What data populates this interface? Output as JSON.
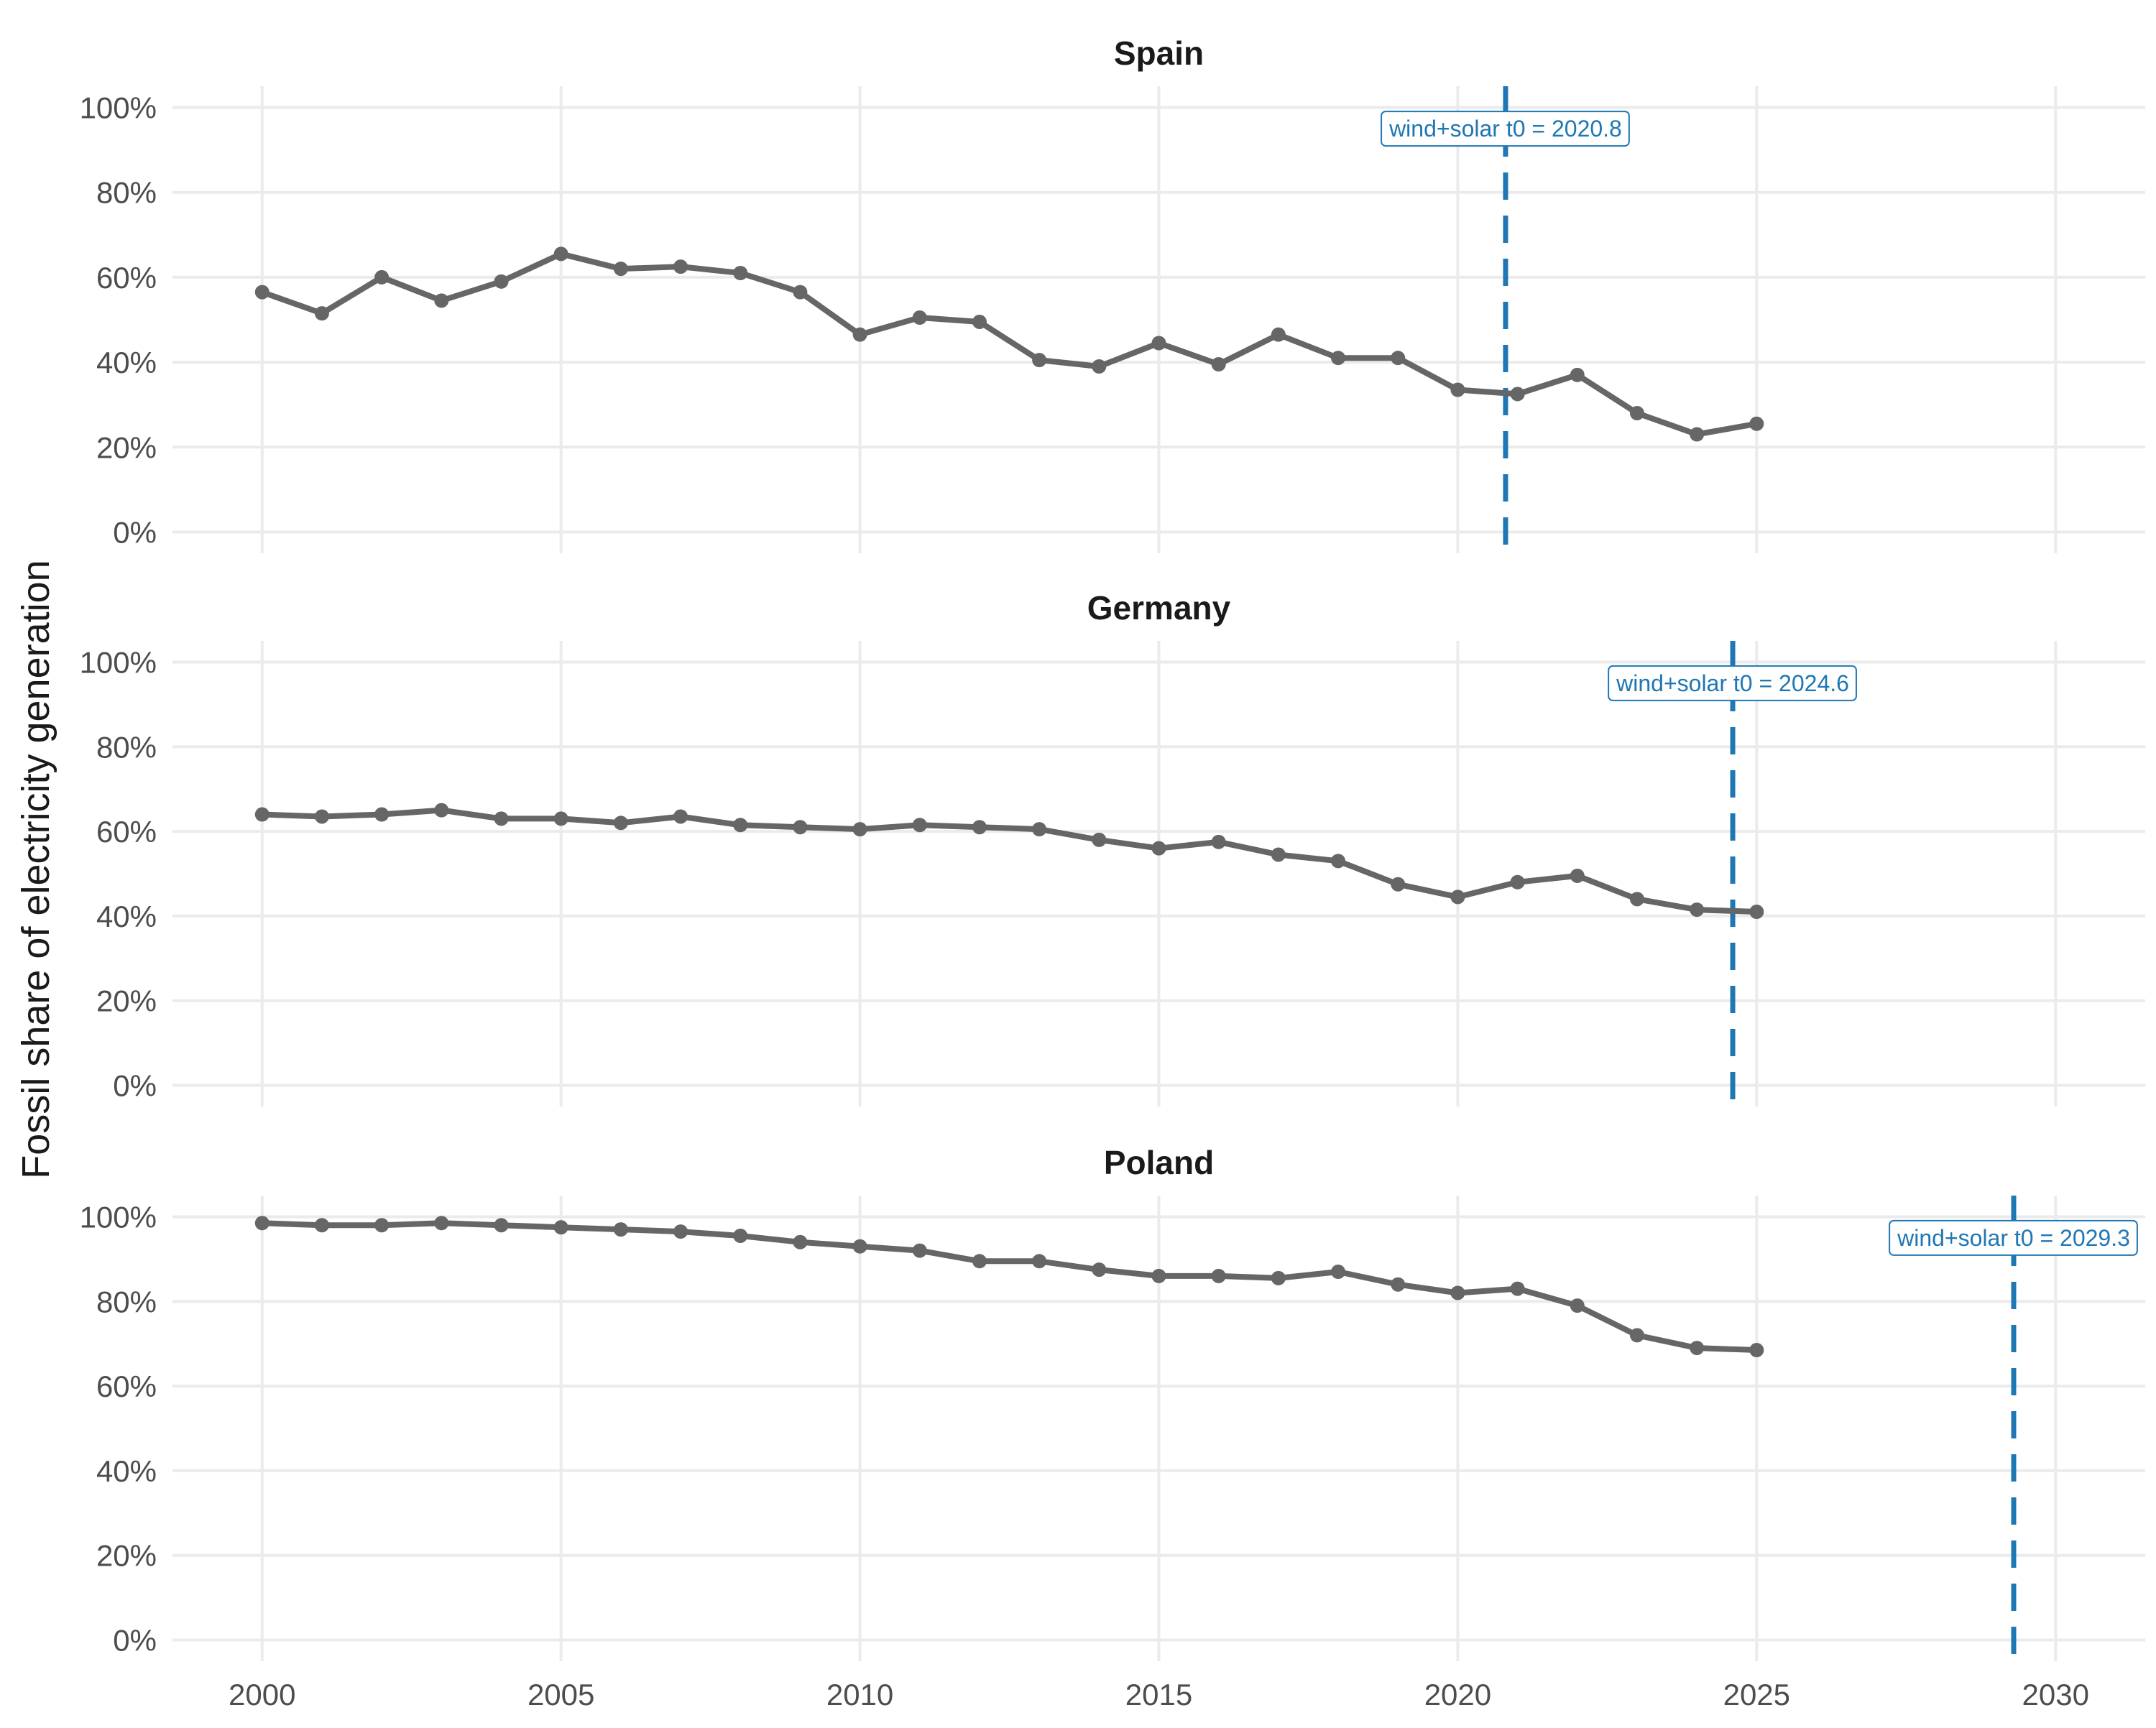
{
  "chart_data": {
    "type": "line",
    "ylabel": "Fossil share of electricity generation",
    "xlim": [
      1998.5,
      2031.5
    ],
    "ylim": [
      -5,
      105
    ],
    "x_ticks": [
      2000,
      2005,
      2010,
      2015,
      2020,
      2025,
      2030
    ],
    "y_ticks": [
      0,
      20,
      40,
      60,
      80,
      100
    ],
    "y_tick_labels": [
      "0%",
      "20%",
      "40%",
      "60%",
      "80%",
      "100%"
    ],
    "grid": true,
    "colors": {
      "series": "#666666",
      "marker": "#666666",
      "vline": "#1f77b4",
      "grid": "#ebebeb"
    },
    "panels": [
      {
        "title": "Spain",
        "x": [
          2000,
          2001,
          2002,
          2003,
          2004,
          2005,
          2006,
          2007,
          2008,
          2009,
          2010,
          2011,
          2012,
          2013,
          2014,
          2015,
          2016,
          2017,
          2018,
          2019,
          2020,
          2021,
          2022,
          2023,
          2024,
          2025
        ],
        "values": [
          56.5,
          51.5,
          60,
          54.5,
          59,
          65.5,
          62,
          62.5,
          61,
          56.5,
          46.5,
          50.5,
          49.5,
          40.5,
          39,
          44.5,
          39.5,
          46.5,
          41,
          41,
          33.5,
          32.5,
          37,
          28,
          23,
          25.5
        ],
        "vline": {
          "x": 2020.8,
          "label": "wind+solar t0 = 2020.8"
        }
      },
      {
        "title": "Germany",
        "x": [
          2000,
          2001,
          2002,
          2003,
          2004,
          2005,
          2006,
          2007,
          2008,
          2009,
          2010,
          2011,
          2012,
          2013,
          2014,
          2015,
          2016,
          2017,
          2018,
          2019,
          2020,
          2021,
          2022,
          2023,
          2024,
          2025
        ],
        "values": [
          64,
          63.5,
          64,
          65,
          63,
          63,
          62,
          63.5,
          61.5,
          61,
          60.5,
          61.5,
          61,
          60.5,
          58,
          56,
          57.5,
          54.5,
          53,
          47.5,
          44.5,
          48,
          49.5,
          44,
          41.5,
          41
        ],
        "vline": {
          "x": 2024.6,
          "label": "wind+solar t0 = 2024.6"
        }
      },
      {
        "title": "Poland",
        "x": [
          2000,
          2001,
          2002,
          2003,
          2004,
          2005,
          2006,
          2007,
          2008,
          2009,
          2010,
          2011,
          2012,
          2013,
          2014,
          2015,
          2016,
          2017,
          2018,
          2019,
          2020,
          2021,
          2022,
          2023,
          2024,
          2025
        ],
        "values": [
          98.5,
          98,
          98,
          98.5,
          98,
          97.5,
          97,
          96.5,
          95.5,
          94,
          93,
          92,
          89.5,
          89.5,
          87.5,
          86,
          86,
          85.5,
          87,
          84,
          82,
          83,
          79,
          72,
          69,
          68.5
        ],
        "vline": {
          "x": 2029.3,
          "label": "wind+solar t0 = 2029.3"
        }
      }
    ]
  }
}
